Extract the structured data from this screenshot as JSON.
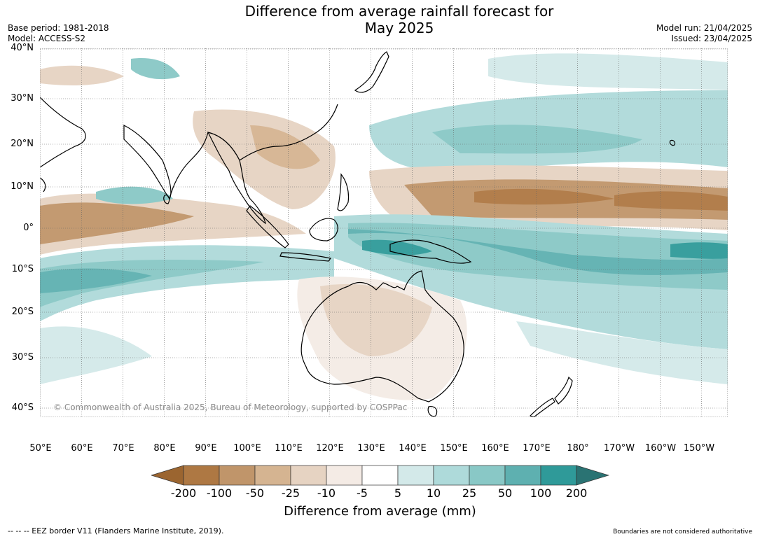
{
  "header": {
    "title_line1": "Difference from average rainfall forecast for",
    "title_line2": "May 2025",
    "base_period": "Base period: 1981-2018",
    "model": "Model: ACCESS-S2",
    "model_run": "Model run: 21/04/2025",
    "issued": "Issued: 23/04/2025"
  },
  "map": {
    "lat_labels": [
      "40°N",
      "30°N",
      "20°N",
      "10°N",
      "0°",
      "10°S",
      "20°S",
      "30°S",
      "40°S"
    ],
    "lon_labels": [
      "50°E",
      "60°E",
      "70°E",
      "80°E",
      "90°E",
      "100°E",
      "110°E",
      "120°E",
      "130°E",
      "140°E",
      "150°E",
      "160°E",
      "170°E",
      "180°",
      "170°W",
      "160°W",
      "150°W"
    ],
    "copyright": "© Commonwealth of Australia 2025, Bureau of Meteorology, supported by COSPPac"
  },
  "colorbar": {
    "title": "Difference from average (mm)",
    "labels": [
      "-200",
      "-100",
      "-50",
      "-25",
      "-10",
      "-5",
      "5",
      "10",
      "25",
      "50",
      "100",
      "200"
    ],
    "colors": [
      "#9b6530",
      "#ae7843",
      "#c0956a",
      "#d5b491",
      "#e6d3c2",
      "#f4ebe5",
      "#ffffff",
      "#d3e9e9",
      "#aedada",
      "#89c8c6",
      "#5eb0b0",
      "#2f9a99",
      "#2a7373"
    ]
  },
  "footer": {
    "eez": "--  --  -- EEZ border V11 (Flanders Marine Institute, 2019).",
    "boundaries": "Boundaries are not considered authoritative"
  }
}
